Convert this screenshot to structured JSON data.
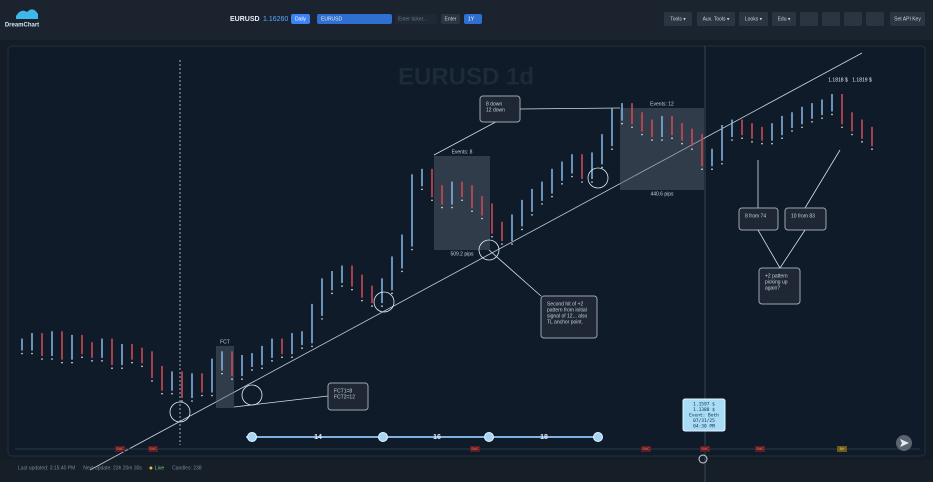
{
  "header": {
    "logo": "DreamChart",
    "symbol": "EURUSD",
    "price": "1.16260",
    "interval": "Daily",
    "ticker_select": "EURUSD",
    "ticker_input": "Enter ticker...",
    "enter": "Enter",
    "range": "1Y",
    "menus": [
      "Tools ▾",
      "Aux. Tools ▾",
      "Looks ▾",
      "Edu ▾"
    ],
    "api": "Set API Key"
  },
  "chart": {
    "title": "EURUSD 1d",
    "closes": [
      1.04,
      1.043,
      1.037,
      1.044,
      1.035,
      1.042,
      1.038,
      1.036,
      1.04,
      1.032,
      1.037,
      1.035,
      1.033,
      1.025,
      1.018,
      1.022,
      1.014,
      1.021,
      1.017,
      1.029,
      1.033,
      1.026,
      1.031,
      1.032,
      1.036,
      1.04,
      1.038,
      1.043,
      1.044,
      1.059,
      1.073,
      1.077,
      1.08,
      1.075,
      1.069,
      1.066,
      1.073,
      1.085,
      1.097,
      1.13,
      1.133,
      1.124,
      1.12,
      1.126,
      1.124,
      1.118,
      1.114,
      1.104,
      1.1,
      1.108,
      1.116,
      1.122,
      1.126,
      1.133,
      1.137,
      1.141,
      1.134,
      1.142,
      1.152,
      1.166,
      1.169,
      1.164,
      1.16,
      1.157,
      1.162,
      1.158,
      1.155,
      1.152,
      1.141,
      1.144,
      1.157,
      1.16,
      1.158,
      1.156,
      1.155,
      1.158,
      1.162,
      1.164,
      1.167,
      1.169,
      1.171,
      1.174,
      1.164,
      1.16,
      1.156,
      1.152
    ],
    "zones": [
      {
        "events": "Events: 8",
        "pips": "509.2 pips"
      },
      {
        "events": "Events: 12",
        "pips": "440.6 pips"
      }
    ],
    "fct": "FCT",
    "price_labels": [
      "1.1818 $",
      "1.1819 $"
    ],
    "notes": [
      [
        "8 down",
        "12 down"
      ],
      [
        "Second hit of +2",
        "pattern from initial",
        "signal of 12... also",
        "TL anchor point."
      ],
      [
        "FCT1=8",
        "FCT2=12"
      ],
      [
        "8 from 74"
      ],
      [
        "10 from 83"
      ],
      [
        "+2 pattern",
        "picking up",
        "again?"
      ]
    ],
    "tooltip": [
      "1.1597 $",
      "1.1388 $",
      "Event: Both",
      "07/31/25",
      "04:30 PM"
    ],
    "timeline": [
      "14",
      "16",
      "18"
    ],
    "markers": [
      "SMC",
      "SMC",
      "SMC",
      "SMC",
      "SMC",
      "SMC",
      "BH"
    ]
  },
  "footer": [
    "Last updated: 3:15:40 PM",
    "Next update: 23h 20m 30s",
    "Live",
    "Candles: 238"
  ]
}
